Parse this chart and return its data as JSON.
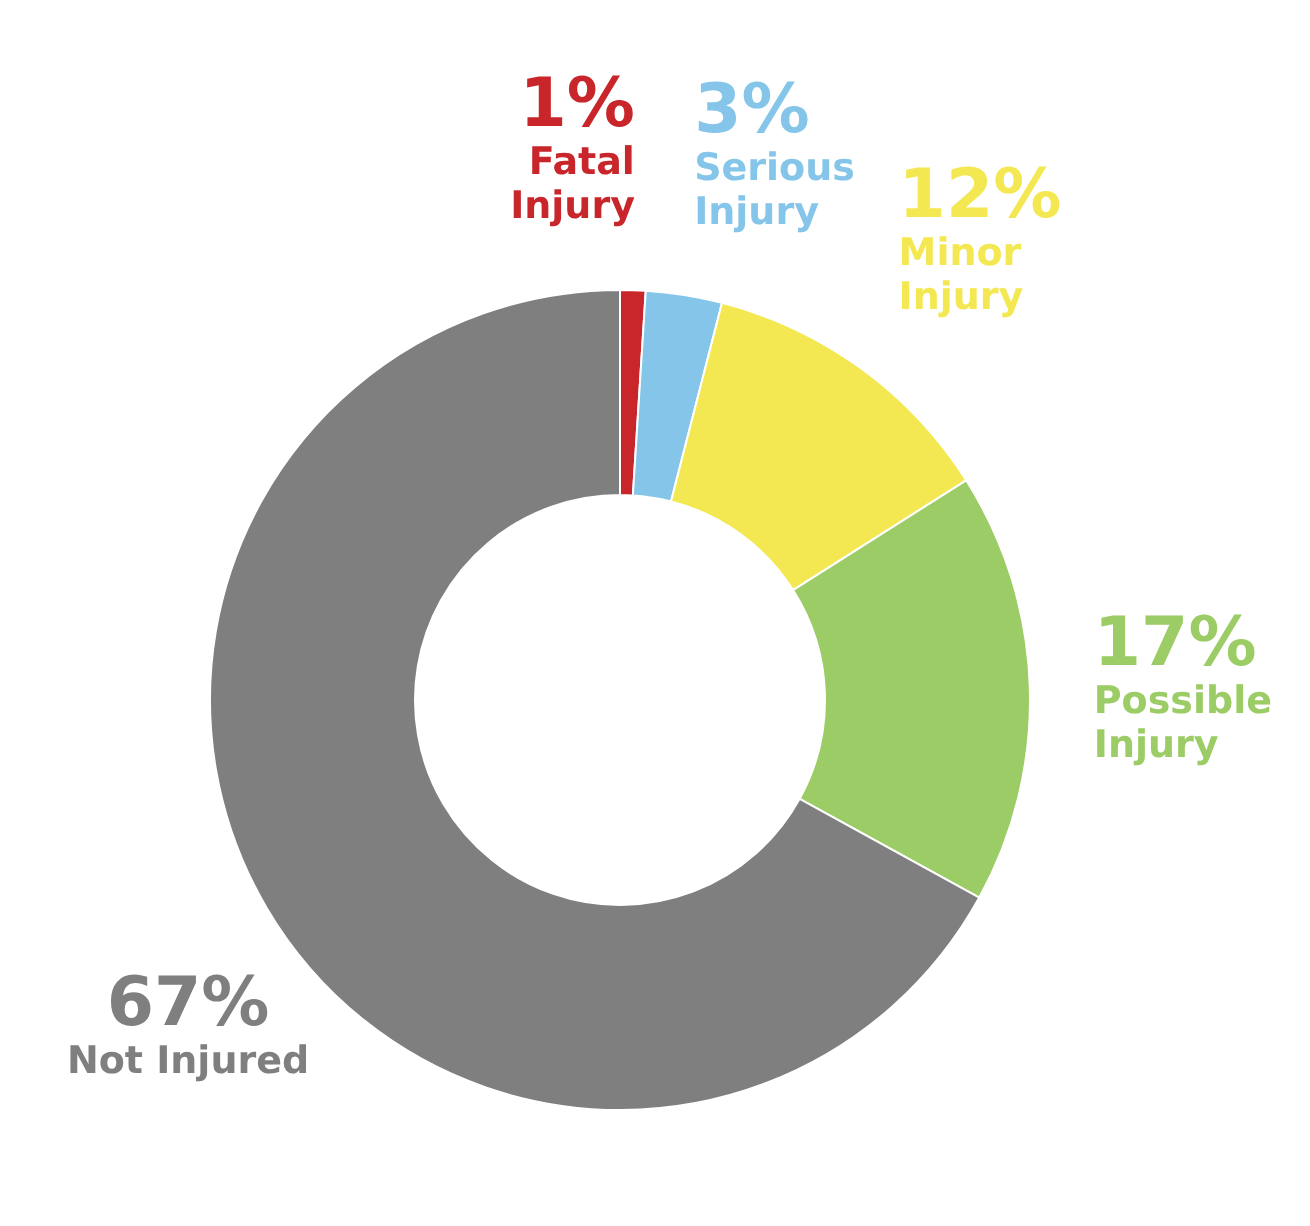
{
  "chart_data": {
    "type": "donut",
    "categories": [
      "Fatal Injury",
      "Serious Injury",
      "Minor Injury",
      "Possible Injury",
      "Not Injured"
    ],
    "values": [
      1,
      3,
      12,
      17,
      67
    ],
    "colors": [
      "#c8262b",
      "#86c5ea",
      "#f3e852",
      "#9ccc65",
      "#7f7f7f"
    ],
    "value_labels": [
      "1%",
      "3%",
      "12%",
      "17%",
      "67%"
    ],
    "data_labels": true
  }
}
